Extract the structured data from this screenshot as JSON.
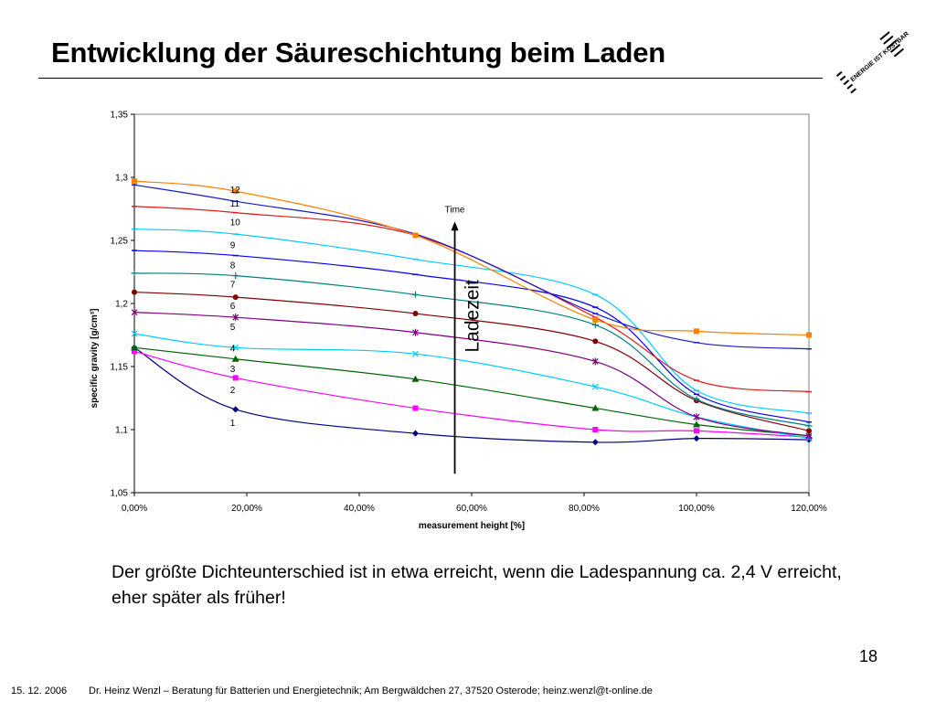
{
  "slide": {
    "title": "Entwicklung der Säureschichtung beim Laden",
    "caption": "Der größte Dichteunterschied ist in etwa erreicht, wenn die Ladespannung ca. 2,4 V erreicht, eher später als früher!",
    "page_number": "18",
    "footer_date": "15. 12. 2006",
    "footer_author": "Dr. Heinz Wenzl – Beratung für Batterien und Energietechnik; Am Bergwäldchen 27, 37520 Osterode; heinz.wenzl@t-online.de",
    "logo_text": "ENERGIE IST KOSTBAR"
  },
  "chart_data": {
    "type": "line",
    "title": "",
    "xlabel": "measurement height [%]",
    "ylabel": "specific gravity [g/cm³]",
    "x": [
      0,
      18,
      50,
      82,
      100,
      120
    ],
    "xlim": [
      0,
      120
    ],
    "ylim": [
      1.05,
      1.35
    ],
    "x_ticks": [
      "0,00%",
      "20,00%",
      "40,00%",
      "60,00%",
      "80,00%",
      "100,00%",
      "120,00%"
    ],
    "y_ticks": [
      "1,05",
      "1,1",
      "1,15",
      "1,2",
      "1,25",
      "1,3",
      "1,35"
    ],
    "grid": false,
    "legend": "none",
    "annotations": {
      "arrow_label": "Time",
      "arrow_x": 57,
      "arrow_y": [
        1.065,
        1.265
      ],
      "side_label": "Ladezeit"
    },
    "series": [
      {
        "label": "1",
        "color": "#000080",
        "marker": "diamond",
        "values": [
          1.165,
          1.116,
          1.097,
          1.09,
          1.093,
          1.092
        ]
      },
      {
        "label": "2",
        "color": "#ff00ff",
        "marker": "square",
        "values": [
          1.162,
          1.141,
          1.117,
          1.1,
          1.099,
          1.094
        ]
      },
      {
        "label": "3",
        "color": "#006400",
        "marker": "triangle",
        "values": [
          1.165,
          1.156,
          1.14,
          1.117,
          1.104,
          1.095
        ]
      },
      {
        "label": "4",
        "color": "#00ccff",
        "marker": "x",
        "values": [
          1.176,
          1.165,
          1.16,
          1.134,
          1.11,
          1.093
        ]
      },
      {
        "label": "5",
        "color": "#800080",
        "marker": "star",
        "values": [
          1.193,
          1.189,
          1.177,
          1.154,
          1.11,
          1.095
        ]
      },
      {
        "label": "6",
        "color": "#800000",
        "marker": "circle",
        "values": [
          1.209,
          1.205,
          1.192,
          1.17,
          1.123,
          1.099
        ]
      },
      {
        "label": "7",
        "color": "#008080",
        "marker": "plus",
        "values": [
          1.224,
          1.222,
          1.207,
          1.183,
          1.124,
          1.103
        ]
      },
      {
        "label": "8",
        "color": "#0000ff",
        "marker": "dash",
        "values": [
          1.242,
          1.238,
          1.223,
          1.197,
          1.128,
          1.106
        ]
      },
      {
        "label": "9",
        "color": "#00ccff",
        "marker": "dash",
        "values": [
          1.259,
          1.255,
          1.235,
          1.207,
          1.131,
          1.113
        ]
      },
      {
        "label": "10",
        "color": "#e31a1c",
        "marker": "dash",
        "values": [
          1.277,
          1.272,
          1.254,
          1.189,
          1.139,
          1.13
        ]
      },
      {
        "label": "11",
        "color": "#1a1acc",
        "marker": "dash",
        "values": [
          1.294,
          1.281,
          1.255,
          1.192,
          1.169,
          1.164
        ]
      },
      {
        "label": "12",
        "color": "#ff8000",
        "marker": "square",
        "values": [
          1.297,
          1.289,
          1.254,
          1.187,
          1.178,
          1.175
        ]
      }
    ]
  }
}
